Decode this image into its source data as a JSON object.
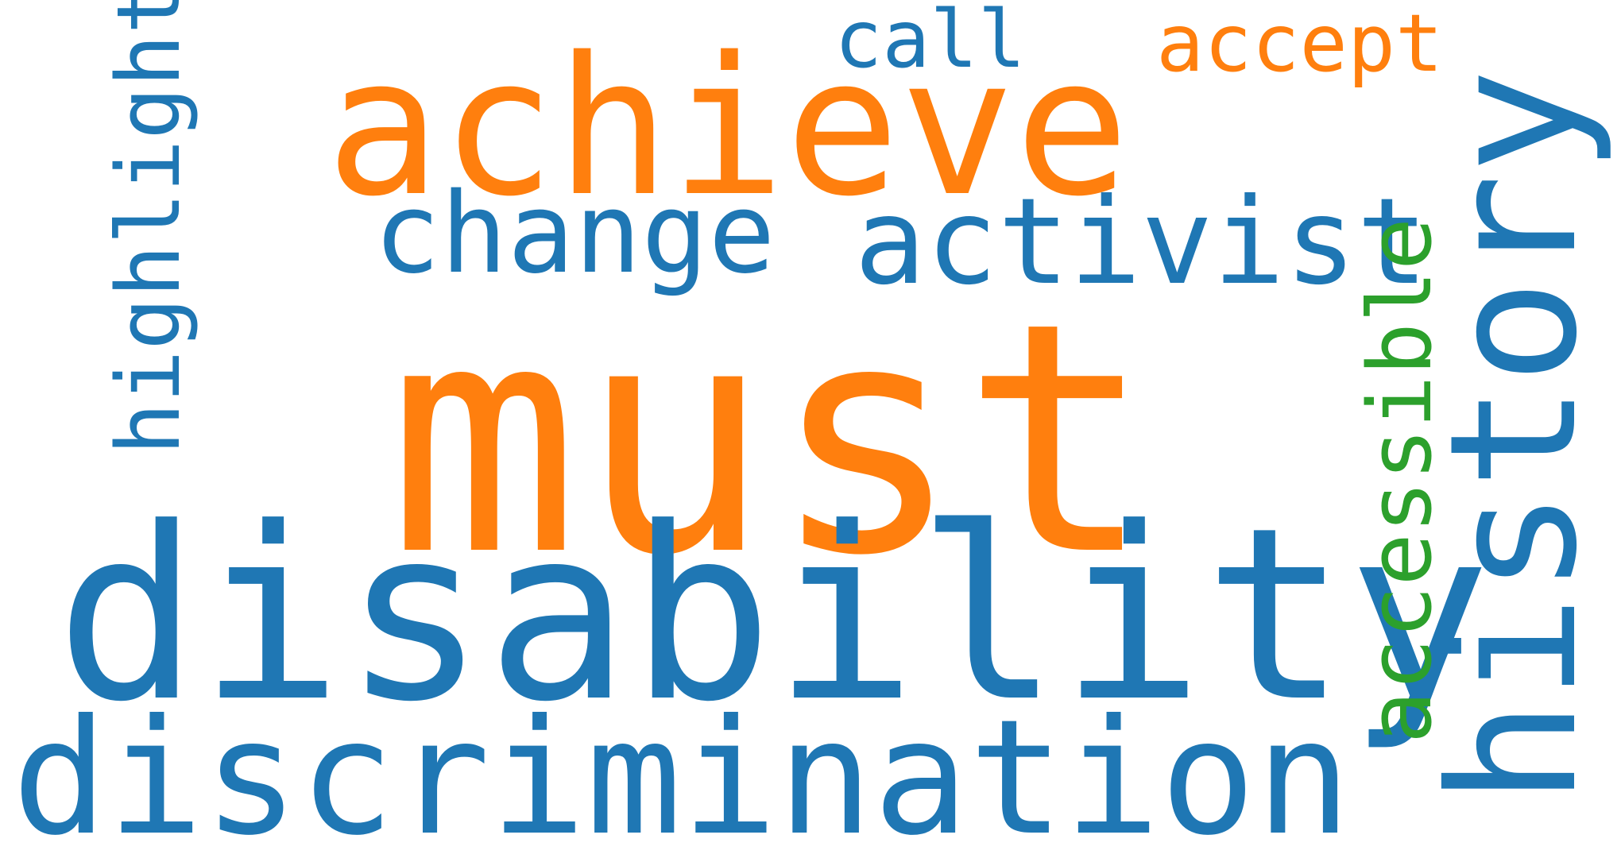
{
  "colors": {
    "background": "#ffffff",
    "blue": "#1f77b4",
    "orange": "#ff7f0e",
    "green": "#2ca02c"
  },
  "words": {
    "must": {
      "text": "must",
      "color": "#ff7f0e"
    },
    "disability": {
      "text": "disability",
      "color": "#1f77b4"
    },
    "discrimination": {
      "text": "discrimination",
      "color": "#1f77b4"
    },
    "achieve": {
      "text": "achieve",
      "color": "#ff7f0e"
    },
    "change": {
      "text": "change",
      "color": "#1f77b4"
    },
    "activist": {
      "text": "activist",
      "color": "#1f77b4"
    },
    "call": {
      "text": "call",
      "color": "#1f77b4"
    },
    "accept": {
      "text": "accept",
      "color": "#ff7f0e"
    },
    "highlight": {
      "text": "highlight",
      "color": "#1f77b4"
    },
    "accessible": {
      "text": "accessible",
      "color": "#2ca02c"
    },
    "history": {
      "text": "history",
      "color": "#1f77b4"
    }
  }
}
